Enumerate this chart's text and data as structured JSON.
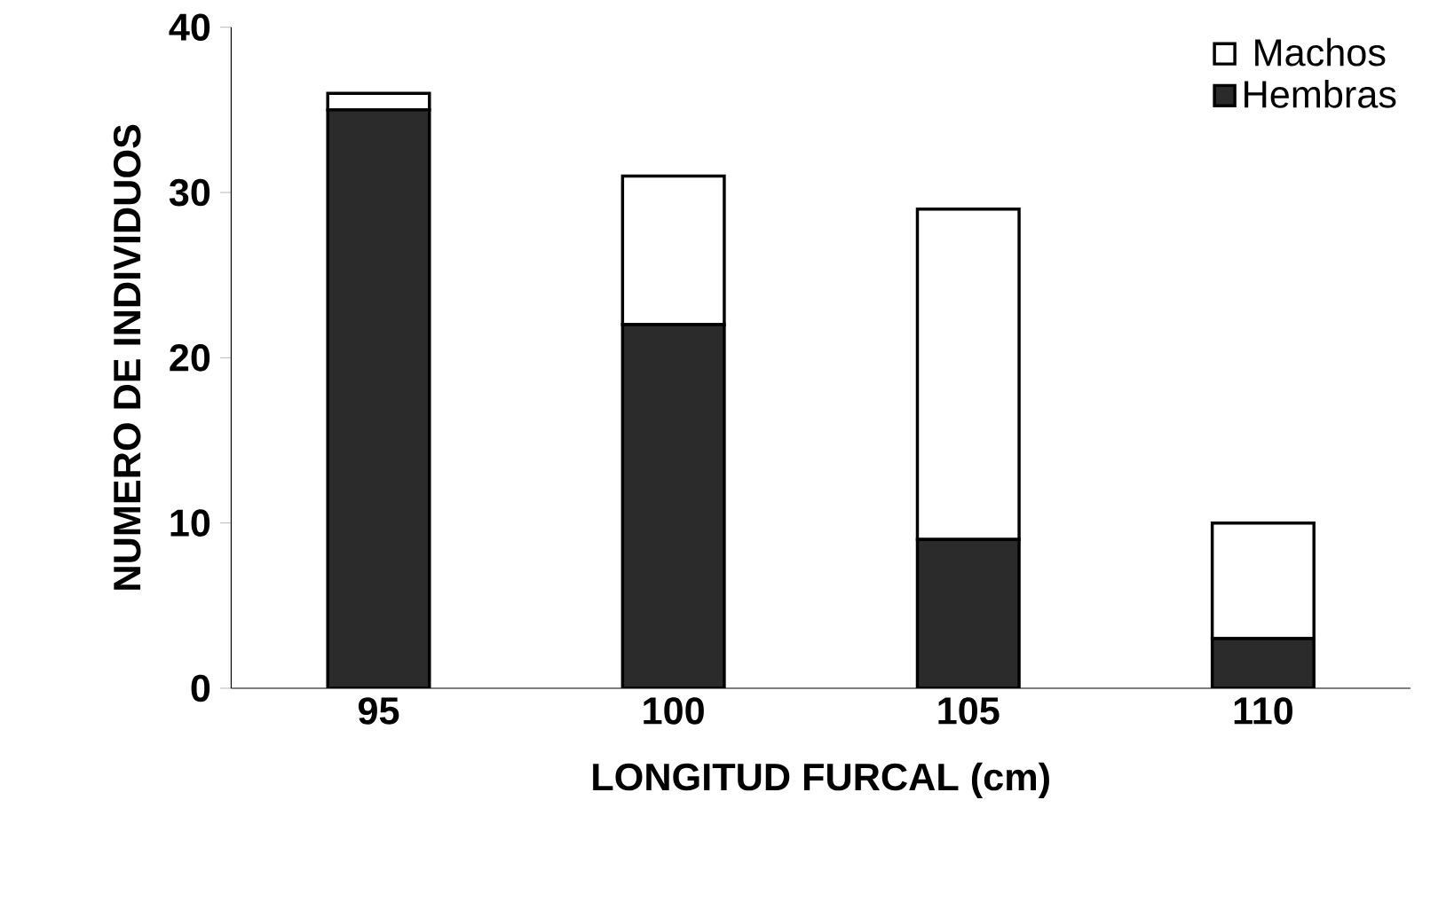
{
  "chart_data": {
    "type": "bar",
    "stacked": true,
    "xlabel": "LONGITUD FURCAL (cm)",
    "ylabel": "NUMERO DE INDIVIDUOS",
    "categories": [
      "95",
      "100",
      "105",
      "110"
    ],
    "series": [
      {
        "name": "Hembras",
        "color": "#2b2b2b",
        "values": [
          35,
          22,
          9,
          3
        ]
      },
      {
        "name": "Machos",
        "color": "#ffffff",
        "values": [
          1,
          9,
          20,
          7
        ]
      }
    ],
    "ylim": [
      0,
      40
    ],
    "yticks": [
      0,
      10,
      20,
      30,
      40
    ],
    "grid": false,
    "legend": "top right"
  }
}
